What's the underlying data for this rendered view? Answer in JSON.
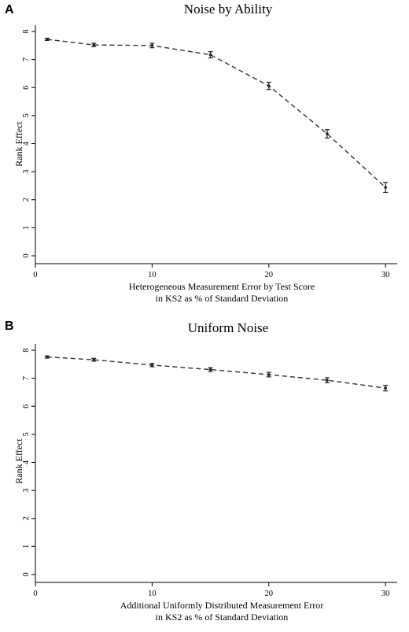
{
  "chart_data": [
    {
      "panel": "A",
      "type": "line",
      "title": "Noise by Ability",
      "xlabel": [
        "Heterogeneous Measurement Error by Test Score",
        "in KS2 as % of Standard Deviation"
      ],
      "ylabel": "Rank Effect",
      "xlim": [
        0,
        31
      ],
      "ylim": [
        0,
        8
      ],
      "xticks": [
        0,
        10,
        20,
        30
      ],
      "yticks": [
        0,
        1,
        2,
        3,
        4,
        5,
        6,
        7,
        8
      ],
      "x": [
        1,
        5,
        10,
        15,
        20,
        25,
        30
      ],
      "values": [
        7.72,
        7.52,
        7.5,
        7.17,
        6.06,
        4.35,
        2.44
      ],
      "ci_low": [
        7.68,
        7.46,
        7.42,
        7.06,
        5.93,
        4.2,
        2.26
      ],
      "ci_high": [
        7.76,
        7.58,
        7.58,
        7.28,
        6.19,
        4.5,
        2.62
      ],
      "grid": false
    },
    {
      "panel": "B",
      "type": "line",
      "title": "Uniform Noise",
      "xlabel": [
        "Additional Uniformly Distributed Measurement Error",
        "in KS2 as % of Standard Deviation"
      ],
      "ylabel": "Rank Effect",
      "xlim": [
        0,
        31
      ],
      "ylim": [
        0,
        8
      ],
      "xticks": [
        0,
        10,
        20,
        30
      ],
      "yticks": [
        0,
        1,
        2,
        3,
        4,
        5,
        6,
        7,
        8
      ],
      "x": [
        1,
        5,
        10,
        15,
        20,
        25,
        30
      ],
      "values": [
        7.76,
        7.66,
        7.47,
        7.31,
        7.13,
        6.93,
        6.65
      ],
      "ci_low": [
        7.72,
        7.61,
        7.41,
        7.24,
        7.05,
        6.84,
        6.55
      ],
      "ci_high": [
        7.8,
        7.71,
        7.53,
        7.38,
        7.21,
        7.02,
        6.75
      ],
      "grid": false
    }
  ]
}
